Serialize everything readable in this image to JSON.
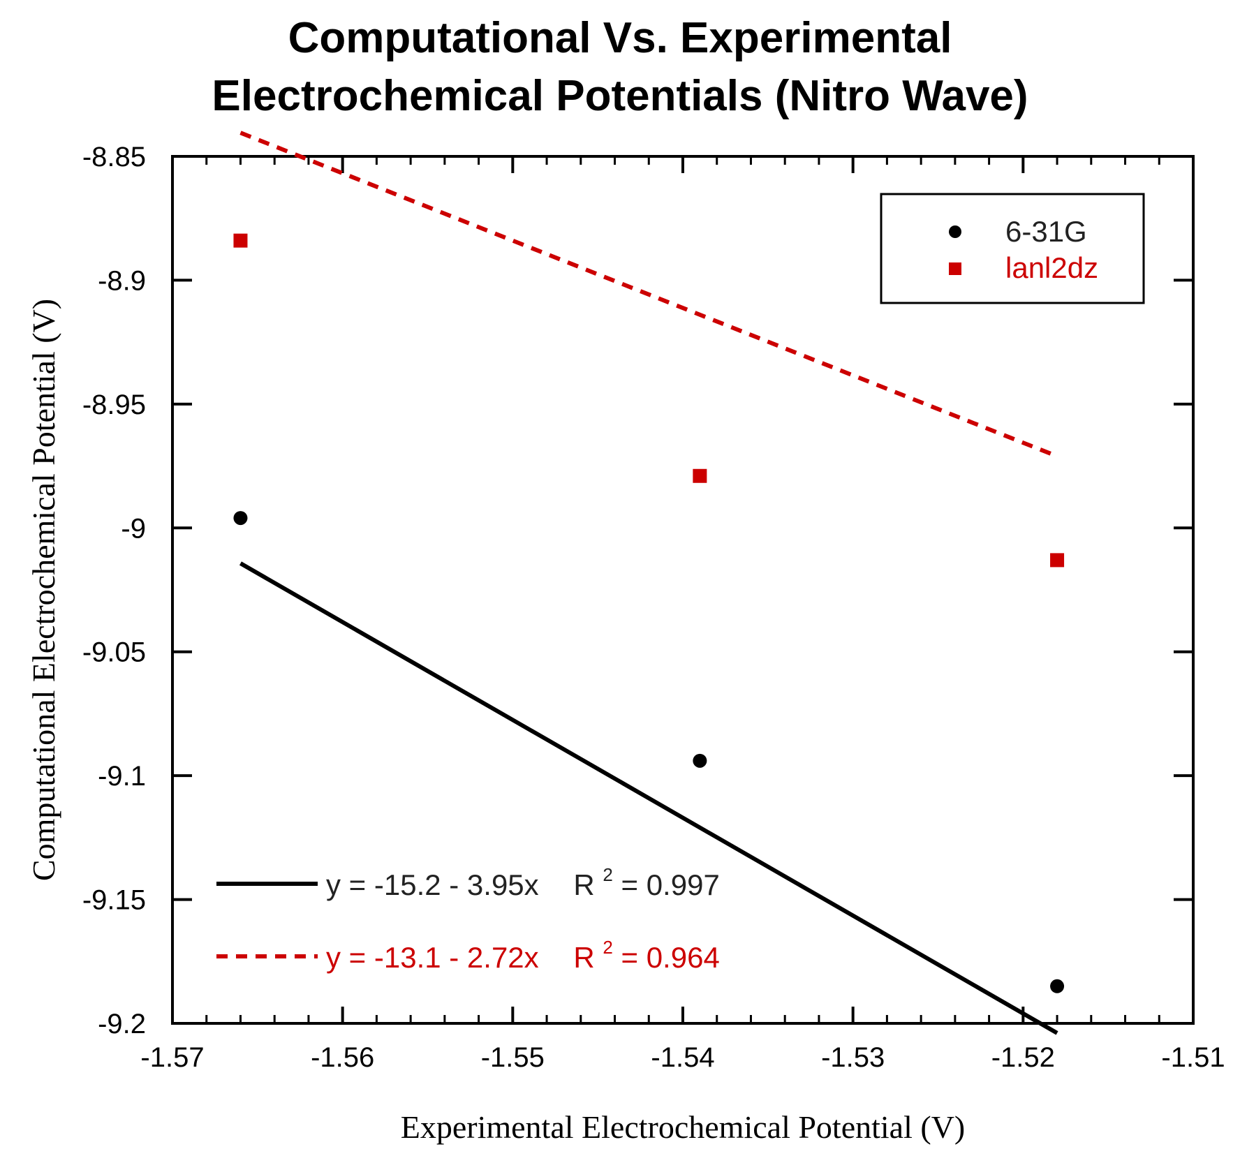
{
  "chart_data": {
    "type": "scatter",
    "title_lines": [
      "Computational Vs. Experimental",
      "Electrochemical Potentials (Nitro Wave)"
    ],
    "xlabel": "Experimental Electrochemical Potential (V)",
    "ylabel": "Computational Electrochemical Potential (V)",
    "xlim": [
      -1.57,
      -1.51
    ],
    "ylim": [
      -9.2,
      -8.85
    ],
    "x_ticks": [
      -1.57,
      -1.56,
      -1.55,
      -1.54,
      -1.53,
      -1.52,
      -1.51
    ],
    "x_tick_labels": [
      "-1.57",
      "-1.56",
      "-1.55",
      "-1.54",
      "-1.53",
      "-1.52",
      "-1.51"
    ],
    "y_ticks": [
      -8.85,
      -8.9,
      -8.95,
      -9,
      -9.05,
      -9.1,
      -9.15,
      -9.2
    ],
    "y_tick_labels": [
      "-8.85",
      "-8.9",
      "-8.95",
      "-9",
      "-9.05",
      "-9.1",
      "-9.15",
      "-9.2"
    ],
    "grid": false,
    "legend_position": "top-right",
    "series": [
      {
        "name": "6-31G",
        "marker": "circle",
        "color": "#000000",
        "x": [
          -1.566,
          -1.539,
          -1.518
        ],
        "y": [
          -8.996,
          -9.094,
          -9.185
        ],
        "fit": {
          "intercept": -15.2,
          "slope": -3.95,
          "r2_value": "0.997",
          "line_style": "solid",
          "equation_prefix": "y = -15.2 - 3.95x",
          "r2_label": "R",
          "r2_sup": "2",
          "r2_suffix": "= 0.997"
        }
      },
      {
        "name": "lanl2dz",
        "marker": "square",
        "color": "#cc0000",
        "x": [
          -1.566,
          -1.539,
          -1.518
        ],
        "y": [
          -8.884,
          -8.979,
          -9.013
        ],
        "fit": {
          "intercept": -13.1,
          "slope": -2.72,
          "r2_value": "0.964",
          "line_style": "dashed",
          "equation_prefix": "y = -13.1 - 2.72x",
          "r2_label": "R",
          "r2_sup": "2",
          "r2_suffix": "= 0.964"
        }
      }
    ]
  }
}
